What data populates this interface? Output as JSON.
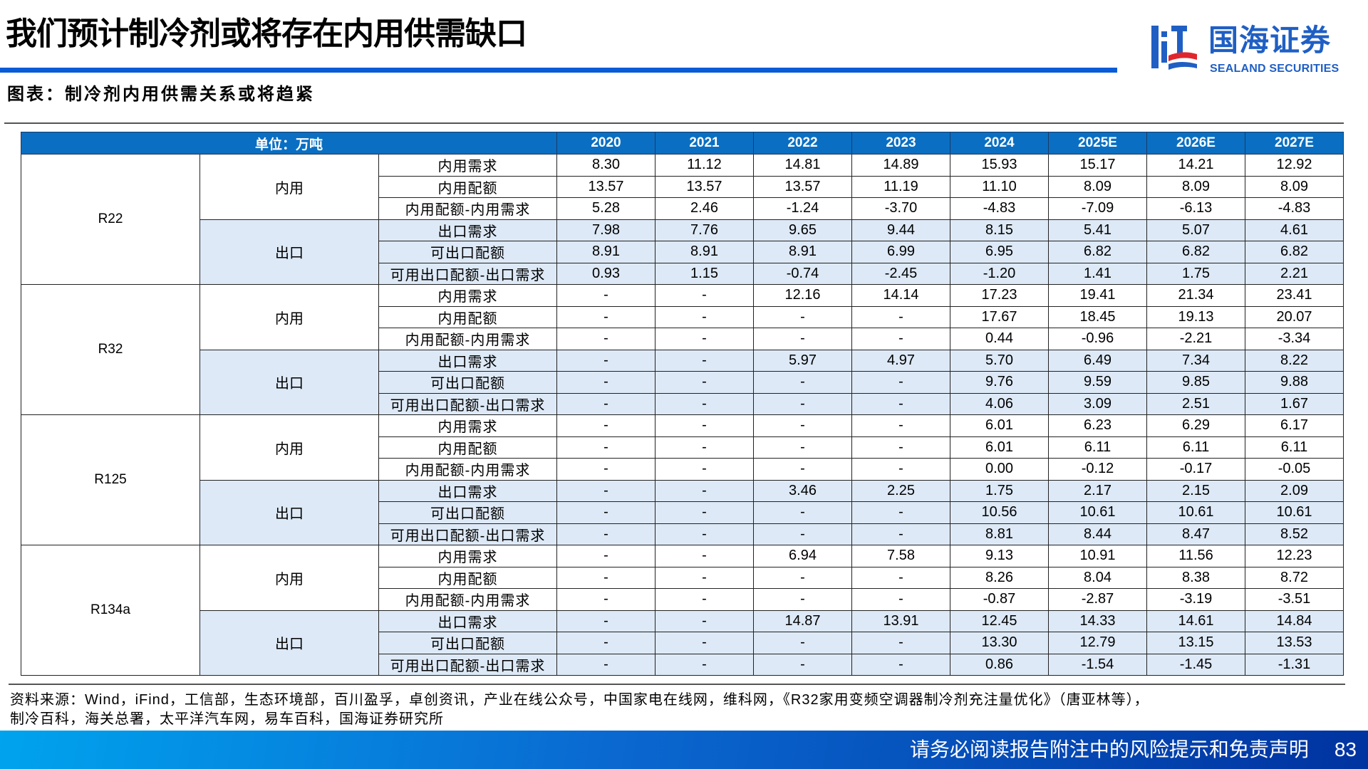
{
  "header": {
    "title": "我们预计制冷剂或将存在内用供需缺口",
    "logo": {
      "cn": "国海证券",
      "en": "SEALAND SECURITIES",
      "brand_color": "#1f5fc4",
      "accent_red": "#e0262d"
    }
  },
  "figure": {
    "caption": "图表：制冷剂内用供需关系或将趋紧"
  },
  "table": {
    "unit_label": "单位：万吨",
    "years": [
      "2020",
      "2021",
      "2022",
      "2023",
      "2024",
      "2025E",
      "2026E",
      "2027E"
    ],
    "header_color": "#0a6fc2",
    "export_row_color": "#dde9f6",
    "refrigerants": [
      {
        "name": "R22",
        "groups": [
          {
            "name": "内用",
            "rows": [
              {
                "item": "内用需求",
                "values": [
                  "8.30",
                  "11.12",
                  "14.81",
                  "14.89",
                  "15.93",
                  "15.17",
                  "14.21",
                  "12.92"
                ]
              },
              {
                "item": "内用配额",
                "values": [
                  "13.57",
                  "13.57",
                  "13.57",
                  "11.19",
                  "11.10",
                  "8.09",
                  "8.09",
                  "8.09"
                ]
              },
              {
                "item": "内用配额-内用需求",
                "values": [
                  "5.28",
                  "2.46",
                  "-1.24",
                  "-3.70",
                  "-4.83",
                  "-7.09",
                  "-6.13",
                  "-4.83"
                ]
              }
            ]
          },
          {
            "name": "出口",
            "rows": [
              {
                "item": "出口需求",
                "values": [
                  "7.98",
                  "7.76",
                  "9.65",
                  "9.44",
                  "8.15",
                  "5.41",
                  "5.07",
                  "4.61"
                ]
              },
              {
                "item": "可出口配额",
                "values": [
                  "8.91",
                  "8.91",
                  "8.91",
                  "6.99",
                  "6.95",
                  "6.82",
                  "6.82",
                  "6.82"
                ]
              },
              {
                "item": "可用出口配额-出口需求",
                "values": [
                  "0.93",
                  "1.15",
                  "-0.74",
                  "-2.45",
                  "-1.20",
                  "1.41",
                  "1.75",
                  "2.21"
                ]
              }
            ]
          }
        ]
      },
      {
        "name": "R32",
        "groups": [
          {
            "name": "内用",
            "rows": [
              {
                "item": "内用需求",
                "values": [
                  "-",
                  "-",
                  "12.16",
                  "14.14",
                  "17.23",
                  "19.41",
                  "21.34",
                  "23.41"
                ]
              },
              {
                "item": "内用配额",
                "values": [
                  "-",
                  "-",
                  "-",
                  "-",
                  "17.67",
                  "18.45",
                  "19.13",
                  "20.07"
                ]
              },
              {
                "item": "内用配额-内用需求",
                "values": [
                  "-",
                  "-",
                  "-",
                  "-",
                  "0.44",
                  "-0.96",
                  "-2.21",
                  "-3.34"
                ]
              }
            ]
          },
          {
            "name": "出口",
            "rows": [
              {
                "item": "出口需求",
                "values": [
                  "-",
                  "-",
                  "5.97",
                  "4.97",
                  "5.70",
                  "6.49",
                  "7.34",
                  "8.22"
                ]
              },
              {
                "item": "可出口配额",
                "values": [
                  "-",
                  "-",
                  "-",
                  "-",
                  "9.76",
                  "9.59",
                  "9.85",
                  "9.88"
                ]
              },
              {
                "item": "可用出口配额-出口需求",
                "values": [
                  "-",
                  "-",
                  "-",
                  "-",
                  "4.06",
                  "3.09",
                  "2.51",
                  "1.67"
                ]
              }
            ]
          }
        ]
      },
      {
        "name": "R125",
        "groups": [
          {
            "name": "内用",
            "rows": [
              {
                "item": "内用需求",
                "values": [
                  "-",
                  "-",
                  "-",
                  "-",
                  "6.01",
                  "6.23",
                  "6.29",
                  "6.17"
                ]
              },
              {
                "item": "内用配额",
                "values": [
                  "-",
                  "-",
                  "-",
                  "-",
                  "6.01",
                  "6.11",
                  "6.11",
                  "6.11"
                ]
              },
              {
                "item": "内用配额-内用需求",
                "values": [
                  "-",
                  "-",
                  "-",
                  "-",
                  "0.00",
                  "-0.12",
                  "-0.17",
                  "-0.05"
                ]
              }
            ]
          },
          {
            "name": "出口",
            "rows": [
              {
                "item": "出口需求",
                "values": [
                  "-",
                  "-",
                  "3.46",
                  "2.25",
                  "1.75",
                  "2.17",
                  "2.15",
                  "2.09"
                ]
              },
              {
                "item": "可出口配额",
                "values": [
                  "-",
                  "-",
                  "-",
                  "-",
                  "10.56",
                  "10.61",
                  "10.61",
                  "10.61"
                ]
              },
              {
                "item": "可用出口配额-出口需求",
                "values": [
                  "-",
                  "-",
                  "-",
                  "-",
                  "8.81",
                  "8.44",
                  "8.47",
                  "8.52"
                ]
              }
            ]
          }
        ]
      },
      {
        "name": "R134a",
        "groups": [
          {
            "name": "内用",
            "rows": [
              {
                "item": "内用需求",
                "values": [
                  "-",
                  "-",
                  "6.94",
                  "7.58",
                  "9.13",
                  "10.91",
                  "11.56",
                  "12.23"
                ]
              },
              {
                "item": "内用配额",
                "values": [
                  "-",
                  "-",
                  "-",
                  "-",
                  "8.26",
                  "8.04",
                  "8.38",
                  "8.72"
                ]
              },
              {
                "item": "内用配额-内用需求",
                "values": [
                  "-",
                  "-",
                  "-",
                  "-",
                  "-0.87",
                  "-2.87",
                  "-3.19",
                  "-3.51"
                ]
              }
            ]
          },
          {
            "name": "出口",
            "rows": [
              {
                "item": "出口需求",
                "values": [
                  "-",
                  "-",
                  "14.87",
                  "13.91",
                  "12.45",
                  "14.33",
                  "14.61",
                  "14.84"
                ]
              },
              {
                "item": "可出口配额",
                "values": [
                  "-",
                  "-",
                  "-",
                  "-",
                  "13.30",
                  "12.79",
                  "13.15",
                  "13.53"
                ]
              },
              {
                "item": "可用出口配额-出口需求",
                "values": [
                  "-",
                  "-",
                  "-",
                  "-",
                  "0.86",
                  "-1.54",
                  "-1.45",
                  "-1.31"
                ]
              }
            ]
          }
        ]
      }
    ]
  },
  "source": {
    "line1": "资料来源：Wind，iFind，工信部，生态环境部，百川盈孚，卓创资讯，产业在线公众号，中国家电在线网，维科网，《R32家用变频空调器制冷剂充注量优化》（唐亚林等），",
    "line2": "制冷百科，海关总署，太平洋汽车网，易车百科，国海证券研究所"
  },
  "footer": {
    "disclaimer": "请务必阅读报告附注中的风险提示和免责声明",
    "page_number": "83"
  }
}
